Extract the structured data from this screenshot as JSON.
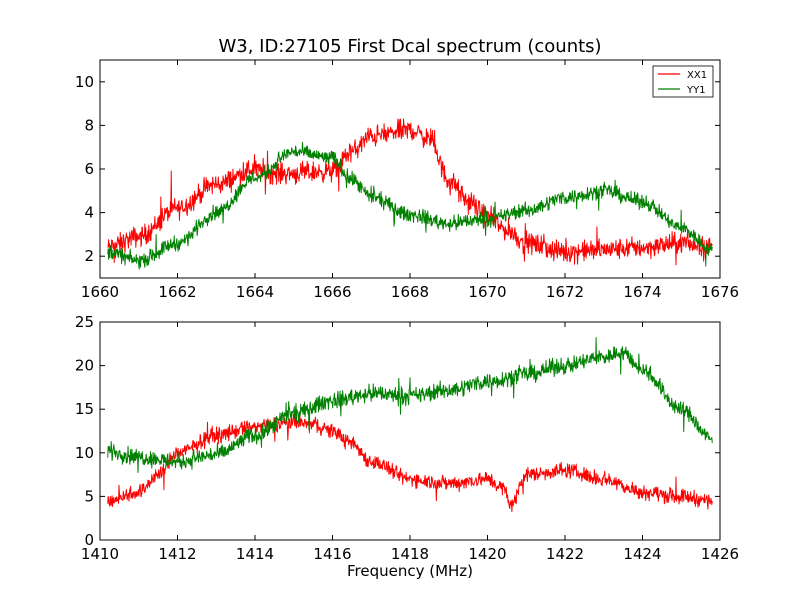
{
  "chart_data": [
    {
      "type": "line",
      "title": "W3, ID:27105 First Dcal spectrum (counts)",
      "xlabel": "",
      "ylabel": "",
      "xlim": [
        1660,
        1676
      ],
      "ylim": [
        1,
        11
      ],
      "xticks": [
        1660,
        1662,
        1664,
        1666,
        1668,
        1670,
        1672,
        1674,
        1676
      ],
      "yticks": [
        2,
        4,
        6,
        8,
        10
      ],
      "legend": {
        "position": "top-right",
        "entries": [
          "XX1",
          "YY1"
        ]
      },
      "grid": false,
      "series": [
        {
          "name": "XX1",
          "color": "#ff0000",
          "x": [
            1660.2,
            1661.0,
            1662.0,
            1663.0,
            1664.0,
            1664.5,
            1665.0,
            1666.0,
            1666.5,
            1667.0,
            1668.0,
            1668.5,
            1669.0,
            1669.5,
            1670.0,
            1670.5,
            1671.0,
            1672.0,
            1673.0,
            1674.0,
            1675.0,
            1675.8
          ],
          "y": [
            2.4,
            2.9,
            4.2,
            5.3,
            6.0,
            5.8,
            5.8,
            5.9,
            6.8,
            7.5,
            7.8,
            7.4,
            5.5,
            4.5,
            3.8,
            3.2,
            2.6,
            2.2,
            2.3,
            2.4,
            2.6,
            2.4
          ],
          "noise": 0.5
        },
        {
          "name": "YY1",
          "color": "#008000",
          "x": [
            1660.2,
            1661.0,
            1662.0,
            1663.0,
            1664.0,
            1665.0,
            1666.0,
            1666.5,
            1667.0,
            1668.0,
            1669.0,
            1670.0,
            1671.0,
            1672.0,
            1673.0,
            1674.0,
            1675.0,
            1675.8
          ],
          "y": [
            2.2,
            1.8,
            2.6,
            4.0,
            5.6,
            6.8,
            6.5,
            5.5,
            4.7,
            3.9,
            3.5,
            3.7,
            4.1,
            4.7,
            5.0,
            4.5,
            3.3,
            2.3
          ],
          "noise": 0.35
        }
      ]
    },
    {
      "type": "line",
      "title": "",
      "xlabel": "Frequency (MHz)",
      "ylabel": "",
      "xlim": [
        1410,
        1426
      ],
      "ylim": [
        0,
        25
      ],
      "xticks": [
        1410,
        1412,
        1414,
        1416,
        1418,
        1420,
        1422,
        1424,
        1426
      ],
      "yticks": [
        0,
        5,
        10,
        15,
        20,
        25
      ],
      "grid": false,
      "series": [
        {
          "name": "XX1",
          "color": "#ff0000",
          "x": [
            1410.2,
            1411.0,
            1411.5,
            1412.0,
            1413.0,
            1414.0,
            1415.0,
            1415.5,
            1416.0,
            1416.5,
            1417.0,
            1418.0,
            1419.0,
            1420.0,
            1420.4,
            1420.6,
            1421.0,
            1422.0,
            1423.0,
            1424.0,
            1425.0,
            1425.8
          ],
          "y": [
            4.5,
            5.5,
            7.5,
            10.0,
            12.0,
            13.0,
            13.5,
            13.2,
            12.5,
            11.0,
            9.0,
            7.0,
            6.5,
            7.0,
            6.0,
            4.0,
            7.5,
            8.0,
            7.0,
            5.5,
            5.0,
            4.5
          ],
          "noise": 0.9
        },
        {
          "name": "YY1",
          "color": "#008000",
          "x": [
            1410.2,
            1411.0,
            1412.0,
            1413.0,
            1414.0,
            1415.0,
            1416.0,
            1417.0,
            1418.0,
            1419.0,
            1420.0,
            1421.0,
            1422.0,
            1423.0,
            1423.5,
            1424.0,
            1425.0,
            1425.8
          ],
          "y": [
            10.2,
            9.5,
            9.0,
            9.8,
            12.0,
            14.5,
            16.0,
            16.8,
            16.5,
            17.2,
            18.2,
            19.0,
            20.0,
            21.0,
            21.5,
            19.5,
            15.0,
            11.5
          ],
          "noise": 1.0
        }
      ]
    }
  ]
}
